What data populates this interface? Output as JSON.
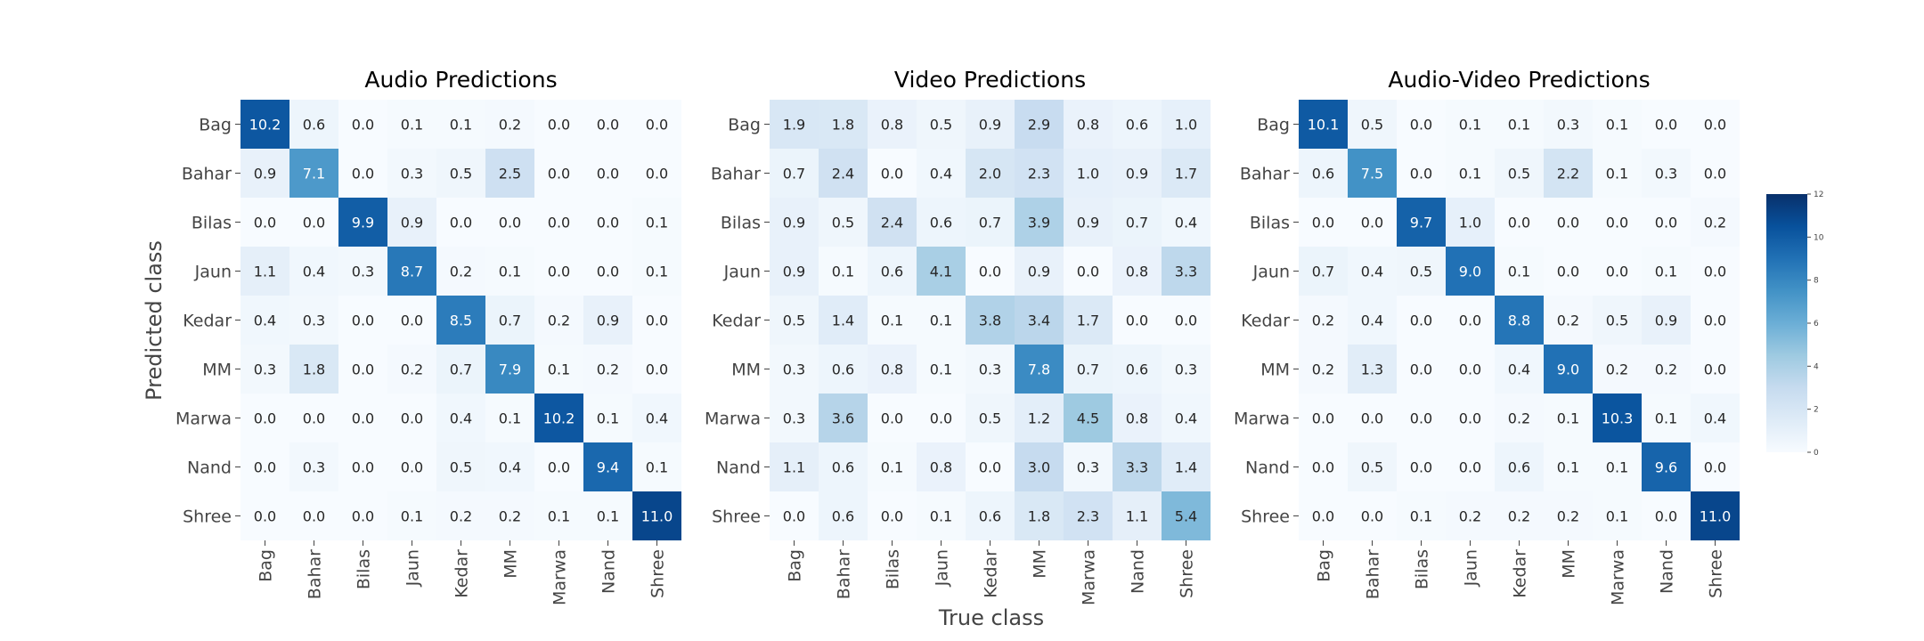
{
  "chart_data": {
    "type": "heatmap",
    "xlabel": "True class",
    "ylabel": "Predicted class",
    "categories": [
      "Bag",
      "Bahar",
      "Bilas",
      "Jaun",
      "Kedar",
      "MM",
      "Marwa",
      "Nand",
      "Shree"
    ],
    "colormap": "Blues",
    "colorbar": {
      "range": [
        0,
        12
      ],
      "ticks": [
        0,
        2,
        4,
        6,
        8,
        10,
        12
      ],
      "placement": "right"
    },
    "panels": [
      {
        "title": "Audio Predictions",
        "values": [
          [
            10.2,
            0.6,
            0.0,
            0.1,
            0.1,
            0.2,
            0.0,
            0.0,
            0.0
          ],
          [
            0.9,
            7.1,
            0.0,
            0.3,
            0.5,
            2.5,
            0.0,
            0.0,
            0.0
          ],
          [
            0.0,
            0.0,
            9.9,
            0.9,
            0.0,
            0.0,
            0.0,
            0.0,
            0.1
          ],
          [
            1.1,
            0.4,
            0.3,
            8.7,
            0.2,
            0.1,
            0.0,
            0.0,
            0.1
          ],
          [
            0.4,
            0.3,
            0.0,
            0.0,
            8.5,
            0.7,
            0.2,
            0.9,
            0.0
          ],
          [
            0.3,
            1.8,
            0.0,
            0.2,
            0.7,
            7.9,
            0.1,
            0.2,
            0.0
          ],
          [
            0.0,
            0.0,
            0.0,
            0.0,
            0.4,
            0.1,
            10.2,
            0.1,
            0.4
          ],
          [
            0.0,
            0.3,
            0.0,
            0.0,
            0.5,
            0.4,
            0.0,
            9.4,
            0.1
          ],
          [
            0.0,
            0.0,
            0.0,
            0.1,
            0.2,
            0.2,
            0.1,
            0.1,
            11.0
          ]
        ]
      },
      {
        "title": "Video Predictions",
        "values": [
          [
            1.9,
            1.8,
            0.8,
            0.5,
            0.9,
            2.9,
            0.8,
            0.6,
            1.0
          ],
          [
            0.7,
            2.4,
            0.0,
            0.4,
            2.0,
            2.3,
            1.0,
            0.9,
            1.7
          ],
          [
            0.9,
            0.5,
            2.4,
            0.6,
            0.7,
            3.9,
            0.9,
            0.7,
            0.4
          ],
          [
            0.9,
            0.1,
            0.6,
            4.1,
            0.0,
            0.9,
            0.0,
            0.8,
            3.3
          ],
          [
            0.5,
            1.4,
            0.1,
            0.1,
            3.8,
            3.4,
            1.7,
            0.0,
            0.0
          ],
          [
            0.3,
            0.6,
            0.8,
            0.1,
            0.3,
            7.8,
            0.7,
            0.6,
            0.3
          ],
          [
            0.3,
            3.6,
            0.0,
            0.0,
            0.5,
            1.2,
            4.5,
            0.8,
            0.4
          ],
          [
            1.1,
            0.6,
            0.1,
            0.8,
            0.0,
            3.0,
            0.3,
            3.3,
            1.4
          ],
          [
            0.0,
            0.6,
            0.0,
            0.1,
            0.6,
            1.8,
            2.3,
            1.1,
            5.4
          ]
        ]
      },
      {
        "title": "Audio-Video Predictions",
        "values": [
          [
            10.1,
            0.5,
            0.0,
            0.1,
            0.1,
            0.3,
            0.1,
            0.0,
            0.0
          ],
          [
            0.6,
            7.5,
            0.0,
            0.1,
            0.5,
            2.2,
            0.1,
            0.3,
            0.0
          ],
          [
            0.0,
            0.0,
            9.7,
            1.0,
            0.0,
            0.0,
            0.0,
            0.0,
            0.2
          ],
          [
            0.7,
            0.4,
            0.5,
            9.0,
            0.1,
            0.0,
            0.0,
            0.1,
            0.0
          ],
          [
            0.2,
            0.4,
            0.0,
            0.0,
            8.8,
            0.2,
            0.5,
            0.9,
            0.0
          ],
          [
            0.2,
            1.3,
            0.0,
            0.0,
            0.4,
            9.0,
            0.2,
            0.2,
            0.0
          ],
          [
            0.0,
            0.0,
            0.0,
            0.0,
            0.2,
            0.1,
            10.3,
            0.1,
            0.4
          ],
          [
            0.0,
            0.5,
            0.0,
            0.0,
            0.6,
            0.1,
            0.1,
            9.6,
            0.0
          ],
          [
            0.0,
            0.0,
            0.1,
            0.2,
            0.2,
            0.2,
            0.1,
            0.0,
            11.0
          ]
        ]
      }
    ]
  }
}
